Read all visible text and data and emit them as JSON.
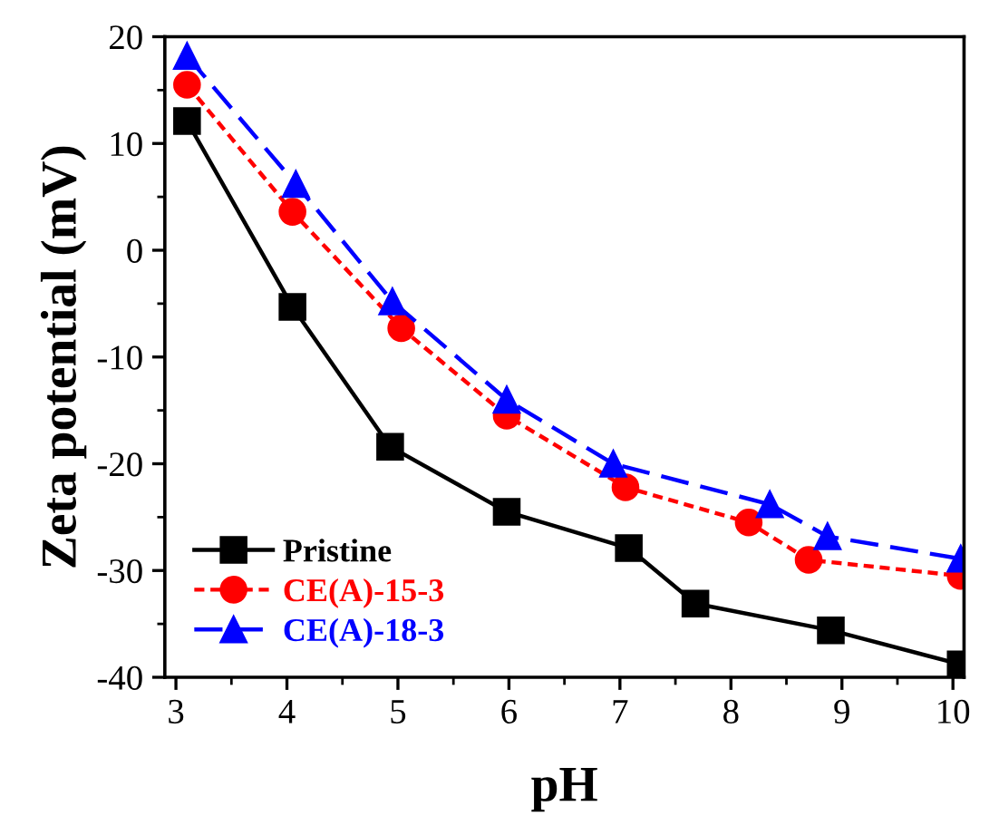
{
  "chart_data": {
    "type": "line",
    "xlabel": "pH",
    "ylabel": "Zeta potential (mV)",
    "xlim": [
      2.9,
      10.1
    ],
    "xticks": [
      3,
      4,
      5,
      6,
      7,
      8,
      9,
      10
    ],
    "ylim": [
      -40,
      20
    ],
    "yticks": [
      -40,
      -30,
      -20,
      -10,
      0,
      10,
      20
    ],
    "grid": false,
    "legend": "bottom left",
    "series": [
      {
        "name": "Pristine",
        "color": "#000000",
        "marker": "square",
        "line_style": "solid",
        "x": [
          3.1,
          4.05,
          4.93,
          5.98,
          7.08,
          7.68,
          8.9,
          10.07
        ],
        "values": [
          12.1,
          -5.3,
          -18.4,
          -24.5,
          -27.9,
          -33.1,
          -35.6,
          -38.8
        ]
      },
      {
        "name": "CE(A)-15-3",
        "color": "#ff0000",
        "marker": "circle",
        "line_style": "dotted",
        "x": [
          3.1,
          4.05,
          5.03,
          5.98,
          7.05,
          8.16,
          8.7,
          10.07
        ],
        "values": [
          15.5,
          3.6,
          -7.3,
          -15.5,
          -22.2,
          -25.5,
          -29.0,
          -30.5
        ]
      },
      {
        "name": "CE(A)-18-3",
        "color": "#0000ff",
        "marker": "triangle",
        "line_style": "dashed",
        "x": [
          3.1,
          4.08,
          4.95,
          5.98,
          6.94,
          8.35,
          8.87,
          10.07
        ],
        "values": [
          18.2,
          6.2,
          -4.8,
          -14.0,
          -20.0,
          -23.8,
          -26.8,
          -28.9
        ]
      }
    ]
  }
}
